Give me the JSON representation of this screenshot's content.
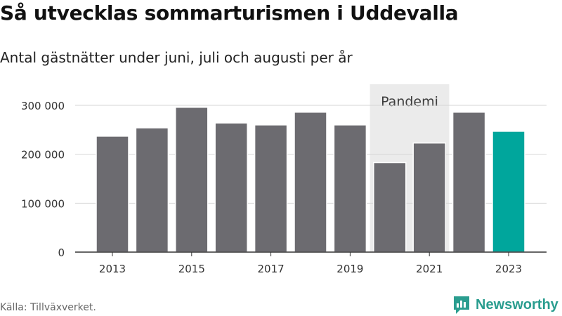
{
  "header": {
    "title": "Så utvecklas sommarturismen i Uddevalla",
    "subtitle": "Antal gästnätter under juni, juli och augusti per år"
  },
  "footer": {
    "source": "Källa: Tillväxverket.",
    "brand": "Newsworthy"
  },
  "chart_data": {
    "type": "bar",
    "title": "Så utvecklas sommarturismen i Uddevalla",
    "subtitle": "Antal gästnätter under juni, juli och augusti per år",
    "categories": [
      "2013",
      "2014",
      "2015",
      "2016",
      "2017",
      "2018",
      "2019",
      "2020",
      "2021",
      "2022",
      "2023"
    ],
    "values": [
      237000,
      254000,
      296000,
      264000,
      260000,
      286000,
      260000,
      183000,
      223000,
      286000,
      247000
    ],
    "xticks": [
      "2013",
      "2015",
      "2017",
      "2019",
      "2021",
      "2023"
    ],
    "yticks": [
      0,
      100000,
      200000,
      300000
    ],
    "ytick_labels": [
      "0",
      "100 000",
      "200 000",
      "300 000"
    ],
    "ylim": [
      0,
      300000
    ],
    "grid": true,
    "highlight": {
      "category": "2023",
      "color": "#00a69c"
    },
    "bar_color": "#6c6b70",
    "annotation": {
      "label": "Pandemi",
      "from": "2020",
      "to": "2021",
      "color": "#ebebeb"
    }
  }
}
